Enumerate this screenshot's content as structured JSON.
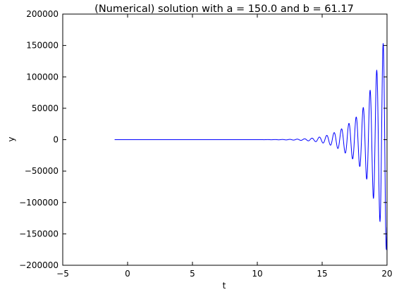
{
  "chart_data": {
    "type": "line",
    "title": "(Numerical) solution with a = 150.0 and b = 61.17",
    "xlabel": "t",
    "ylabel": "y",
    "xlim": [
      -5,
      20
    ],
    "ylim": [
      -200000,
      200000
    ],
    "x_ticks": [
      -5,
      0,
      5,
      10,
      15,
      20
    ],
    "x_tick_labels": [
      "−5",
      "0",
      "5",
      "10",
      "15",
      "20"
    ],
    "y_ticks": [
      -200000,
      -150000,
      -100000,
      -50000,
      0,
      50000,
      100000,
      150000,
      200000
    ],
    "y_tick_labels": [
      "−200000",
      "−150000",
      "−100000",
      "−50000",
      "0",
      "50000",
      "100000",
      "150000",
      "200000"
    ],
    "grid": false,
    "series": [
      {
        "color": "#0000ff",
        "t_start": -1,
        "t_end": 20,
        "oscillation_period": 0.57,
        "peak_samples": [
          {
            "t": 13.9,
            "y": 1800
          },
          {
            "t": 15.0,
            "y": 5000
          },
          {
            "t": 16.0,
            "y": 12000
          },
          {
            "t": 17.0,
            "y": 25000
          },
          {
            "t": 17.8,
            "y": 40000
          },
          {
            "t": 18.3,
            "y": 56000
          },
          {
            "t": 18.7,
            "y": 79000
          },
          {
            "t": 19.2,
            "y": 110000
          },
          {
            "t": 19.7,
            "y": 153000
          },
          {
            "t": 20.0,
            "y": -180000
          }
        ]
      }
    ]
  }
}
